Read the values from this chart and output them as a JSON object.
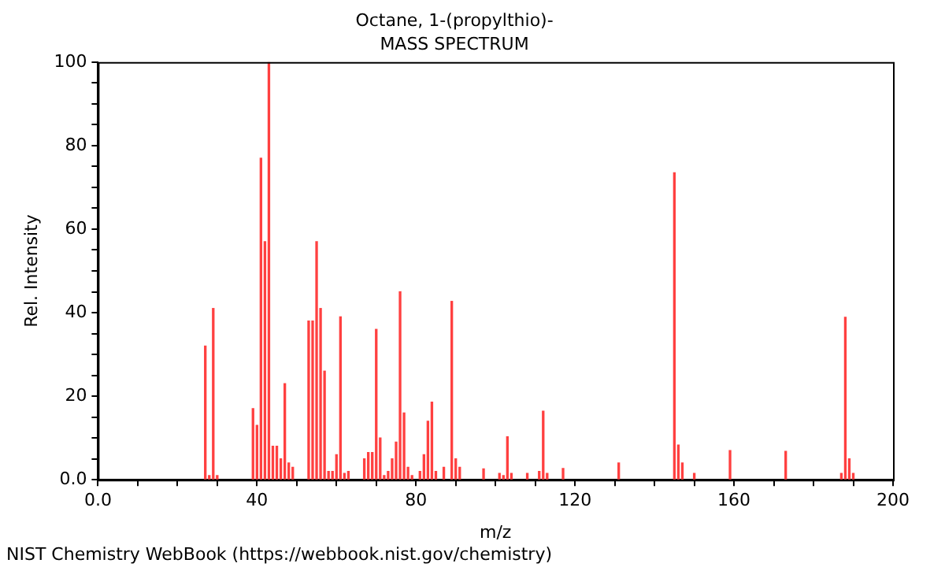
{
  "chart_data": {
    "type": "bar",
    "title": "Octane, 1-(propylthio)-",
    "subtitle": "MASS SPECTRUM",
    "xlabel": "m/z",
    "ylabel": "Rel. Intensity",
    "annotations": [
      "NIST Chemistry WebBook (https://webbook.nist.gov/chemistry)"
    ],
    "x": [
      27,
      28,
      29,
      30,
      39,
      40,
      41,
      42,
      43,
      44,
      45,
      46,
      47,
      48,
      49,
      53,
      54,
      55,
      56,
      57,
      58,
      59,
      60,
      61,
      62,
      63,
      67,
      68,
      69,
      70,
      71,
      72,
      73,
      74,
      75,
      76,
      77,
      78,
      79,
      81,
      82,
      83,
      84,
      85,
      87,
      89,
      90,
      91,
      97,
      101,
      102,
      103,
      104,
      108,
      111,
      112,
      113,
      117,
      131,
      145,
      146,
      147,
      150,
      159,
      173,
      187,
      188,
      189,
      190
    ],
    "values": [
      32,
      1,
      41,
      1,
      17,
      13,
      77,
      57,
      100,
      8,
      8,
      5,
      23,
      4,
      3,
      38,
      38,
      57,
      41,
      26,
      2,
      2,
      6,
      39,
      1.5,
      2,
      5,
      6.5,
      6.5,
      36,
      10,
      1,
      2,
      5,
      9,
      45,
      16,
      3,
      1,
      2,
      6,
      14,
      18.6,
      2,
      3,
      42.7,
      5,
      3,
      2.6,
      1.5,
      1,
      10.3,
      1.5,
      1.5,
      2,
      16.4,
      1.5,
      2.7,
      4,
      73.5,
      8.3,
      4,
      1.5,
      7,
      6.8,
      1.5,
      38.9,
      5,
      1.5
    ],
    "color": "#ff4040",
    "xlim": [
      0,
      200
    ],
    "xticks": [
      {
        "value": 0,
        "label": "0.0"
      },
      {
        "value": 10,
        "label": null
      },
      {
        "value": 20,
        "label": null
      },
      {
        "value": 30,
        "label": null
      },
      40,
      {
        "value": 50,
        "label": null
      },
      {
        "value": 60,
        "label": null
      },
      {
        "value": 70,
        "label": null
      },
      80,
      {
        "value": 90,
        "label": null
      },
      {
        "value": 100,
        "label": null
      },
      {
        "value": 110,
        "label": null
      },
      120,
      {
        "value": 130,
        "label": null
      },
      {
        "value": 140,
        "label": null
      },
      {
        "value": 150,
        "label": null
      },
      160,
      {
        "value": 170,
        "label": null
      },
      {
        "value": 180,
        "label": null
      },
      {
        "value": 190,
        "label": null
      },
      200
    ],
    "ylim": [
      0,
      100
    ],
    "yticks": [
      {
        "value": 0,
        "label": "0.0"
      },
      {
        "value": 5,
        "label": null
      },
      {
        "value": 10,
        "label": null
      },
      {
        "value": 15,
        "label": null
      },
      20,
      {
        "value": 25,
        "label": null
      },
      {
        "value": 30,
        "label": null
      },
      {
        "value": 35,
        "label": null
      },
      40,
      {
        "value": 45,
        "label": null
      },
      {
        "value": 50,
        "label": null
      },
      {
        "value": 55,
        "label": null
      },
      60,
      {
        "value": 65,
        "label": null
      },
      {
        "value": 70,
        "label": null
      },
      {
        "value": 75,
        "label": null
      },
      80,
      {
        "value": 85,
        "label": null
      },
      {
        "value": 90,
        "label": null
      },
      {
        "value": 95,
        "label": null
      },
      100
    ]
  }
}
